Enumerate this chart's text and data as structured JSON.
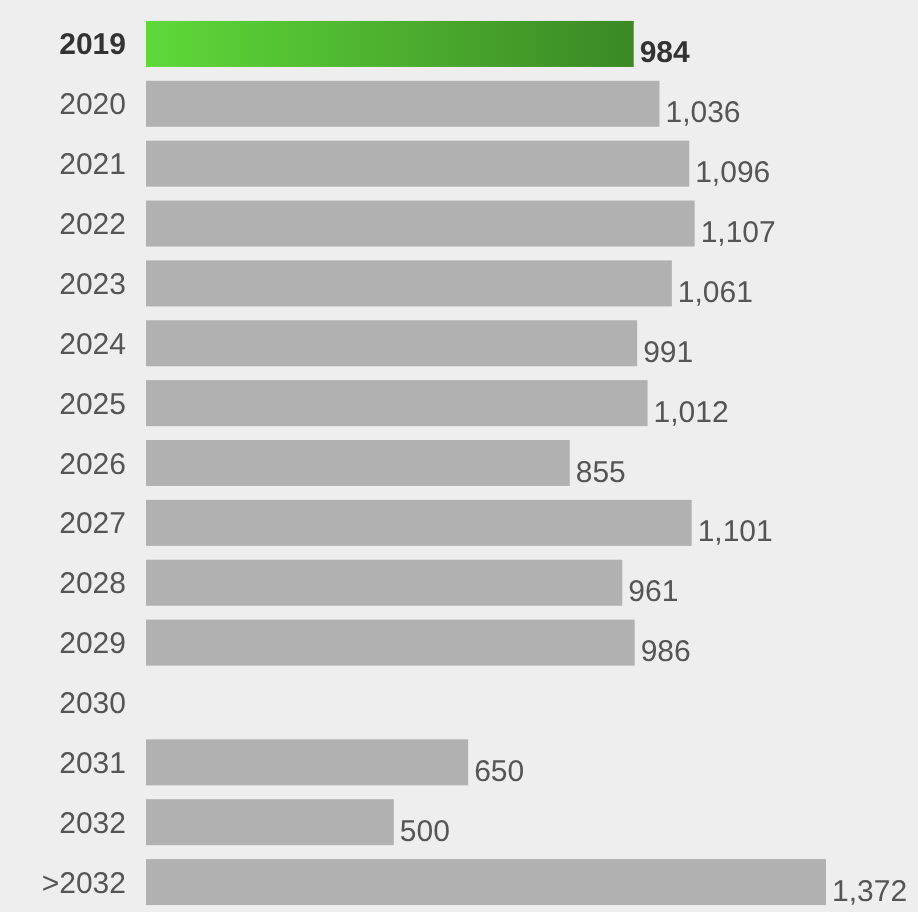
{
  "chart_data": {
    "type": "bar",
    "orientation": "horizontal",
    "categories": [
      "2019",
      "2020",
      "2021",
      "2022",
      "2023",
      "2024",
      "2025",
      "2026",
      "2027",
      "2028",
      "2029",
      "2030",
      "2031",
      "2032",
      ">2032"
    ],
    "values": [
      984,
      1036,
      1096,
      1107,
      1061,
      991,
      1012,
      855,
      1101,
      961,
      986,
      null,
      650,
      500,
      1372
    ],
    "colors": [
      "#4caf2e",
      "#b1b1b1",
      "#b1b1b1",
      "#b1b1b1",
      "#b1b1b1",
      "#b1b1b1",
      "#b1b1b1",
      "#b1b1b1",
      "#b1b1b1",
      "#b1b1b1",
      "#b1b1b1",
      "#b1b1b1",
      "#b1b1b1",
      "#b1b1b1",
      "#b1b1b1"
    ],
    "value_labels": [
      "984",
      "1,036",
      "1,096",
      "1,107",
      "1,061",
      "991",
      "1,012",
      "855",
      "1,101",
      "961",
      "986",
      null,
      "650",
      "500",
      "1,372"
    ]
  }
}
